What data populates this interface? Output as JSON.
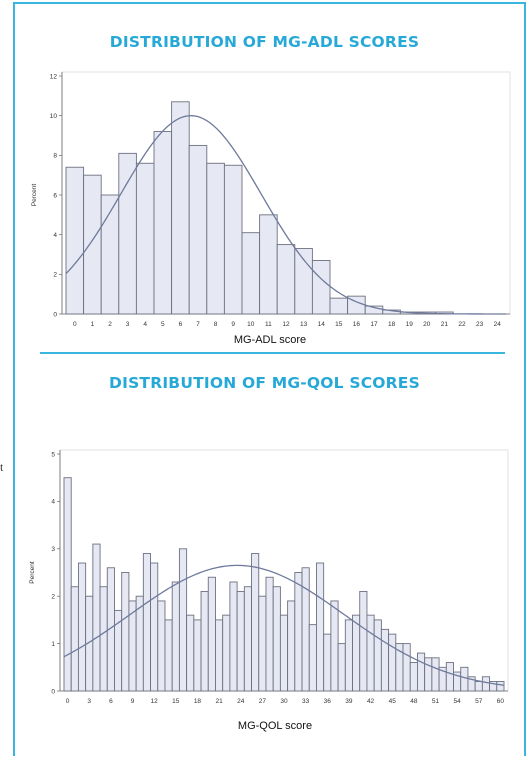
{
  "chart_data": [
    {
      "type": "bar",
      "title": "DISTRIBUTION OF MG-ADL SCORES",
      "xlabel": "MG-ADL score",
      "ylabel": "Percent",
      "ylim": [
        0,
        12
      ],
      "yticks": [
        0,
        2,
        4,
        6,
        8,
        10,
        12
      ],
      "categories": [
        "0",
        "1",
        "2",
        "3",
        "4",
        "5",
        "6",
        "7",
        "8",
        "9",
        "10",
        "11",
        "12",
        "13",
        "14",
        "15",
        "16",
        "17",
        "18",
        "19",
        "20",
        "21",
        "22",
        "23",
        "24"
      ],
      "series": [
        {
          "values": [
            7.4,
            7.0,
            6.0,
            8.1,
            7.6,
            9.2,
            10.7,
            8.5,
            7.6,
            7.5,
            4.1,
            5.0,
            3.5,
            3.3,
            2.7,
            0.8,
            0.9,
            0.4,
            0.2,
            0.1,
            0.1,
            0.1,
            0,
            0,
            0
          ]
        }
      ],
      "curve": {
        "type": "normal-density",
        "mean": 6.6,
        "sd": 3.98,
        "peak": 10.0
      },
      "grid": false,
      "bar_color": "#e6e9f3",
      "bar_edge": "#6d7080",
      "curve_color": "#6f7a9c"
    },
    {
      "type": "bar",
      "title": "DISTRIBUTION OF MG-QOL SCORES",
      "xlabel": "MG-QOL score",
      "ylabel": "Percent",
      "ylim": [
        0,
        5
      ],
      "yticks": [
        0,
        1,
        2,
        3,
        4,
        5
      ],
      "x_ticks": [
        "0",
        "3",
        "6",
        "9",
        "12",
        "15",
        "18",
        "21",
        "24",
        "27",
        "30",
        "33",
        "36",
        "39",
        "42",
        "45",
        "48",
        "51",
        "54",
        "57",
        "60"
      ],
      "x": [
        0,
        1,
        2,
        3,
        4,
        5,
        6,
        7,
        8,
        9,
        10,
        11,
        12,
        13,
        14,
        15,
        16,
        17,
        18,
        19,
        20,
        21,
        22,
        23,
        24,
        25,
        26,
        27,
        28,
        29,
        30,
        31,
        32,
        33,
        34,
        35,
        36,
        37,
        38,
        39,
        40,
        41,
        42,
        43,
        44,
        45,
        46,
        47,
        48,
        49,
        50,
        51,
        52,
        53,
        54,
        55,
        56,
        57,
        58,
        59,
        60
      ],
      "series": [
        {
          "values": [
            4.5,
            2.2,
            2.7,
            2.0,
            3.1,
            2.2,
            2.6,
            1.7,
            2.5,
            1.9,
            2.0,
            2.9,
            2.7,
            1.9,
            1.5,
            2.3,
            3.0,
            1.6,
            1.5,
            2.1,
            2.4,
            1.5,
            1.6,
            2.3,
            2.1,
            2.2,
            2.9,
            2.0,
            2.4,
            2.2,
            1.6,
            1.9,
            2.5,
            2.6,
            1.4,
            2.7,
            1.2,
            1.9,
            1.0,
            1.5,
            1.6,
            2.1,
            1.6,
            1.5,
            1.3,
            1.2,
            1.0,
            1.0,
            0.6,
            0.8,
            0.7,
            0.7,
            0.5,
            0.6,
            0.4,
            0.5,
            0.3,
            0.2,
            0.3,
            0.2,
            0.2
          ]
        }
      ],
      "curve": {
        "type": "normal-density",
        "mean": 23.5,
        "sd": 14.9,
        "peak": 2.65
      },
      "grid": false,
      "bar_color": "#e6e9f3",
      "bar_edge": "#6d7080",
      "curve_color": "#6f7a9c"
    }
  ],
  "stray_mark": "t"
}
